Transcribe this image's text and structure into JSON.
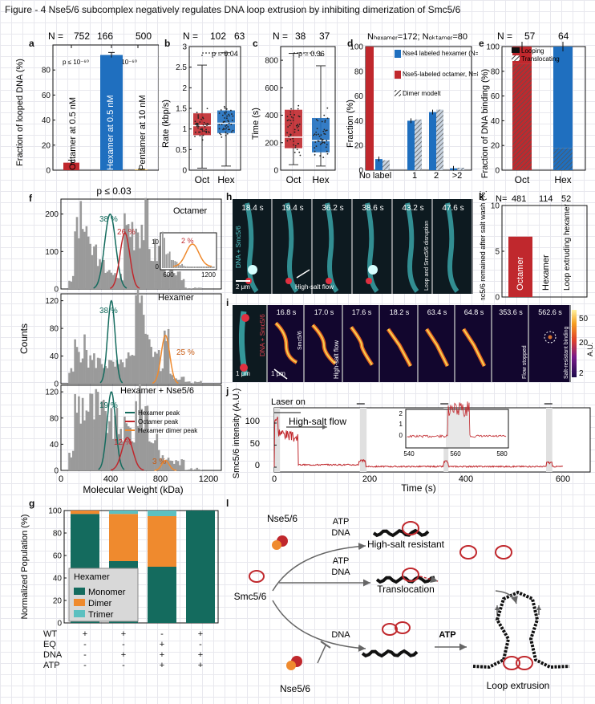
{
  "figure_title": "Figure - 4 Nse5/6 subcomplex negatively regulates DNA loop extrusion by inhibiting dimerization of Smc5/6",
  "panel_labels": {
    "a": "a",
    "b": "b",
    "c": "c",
    "d": "d",
    "e": "e",
    "f": "f",
    "g": "g",
    "h": "h",
    "i": "i",
    "j": "j",
    "k": "k",
    "l": "l"
  },
  "colors": {
    "red": "#c0282d",
    "blue": "#1f6fbf",
    "teal": "#146b5e",
    "orange": "#ef8a2e",
    "cyan": "#5cc0c0",
    "gray": "#9a9a9a"
  },
  "panel_a": {
    "n_prefix": "N =",
    "n_values": [
      "752",
      "166",
      "500"
    ],
    "ylabel": "Fraction of looped DNA (%)",
    "ticks": [
      "0",
      "20",
      "40",
      "60",
      "80"
    ],
    "pvals": [
      "p ≤ 10⁻⁶⁰",
      "p ≤ 10⁻⁶⁰"
    ],
    "bar_labels": [
      "Octamer at 0.5 nM",
      "Hexamer at 0.5 nM",
      "Pentamer at 10 nM"
    ],
    "chart_data": {
      "type": "bar",
      "categories": [
        "Octamer at 0.5 nM",
        "Hexamer at 0.5 nM",
        "Pentamer at 10 nM"
      ],
      "values": [
        6,
        92,
        0.5
      ],
      "errors": [
        2,
        2,
        0.3
      ],
      "ylim": [
        0,
        100
      ],
      "ylabel": "Fraction of looped DNA (%)"
    }
  },
  "panel_b": {
    "n_prefix": "N =",
    "n_values": [
      "102",
      "63"
    ],
    "ylabel": "Rate (kbp/s)",
    "ticks": [
      "0",
      "0.5",
      "1",
      "1.5",
      "2",
      "2.5",
      "3"
    ],
    "pval": "p = 0.04",
    "categories": [
      "Oct",
      "Hex"
    ],
    "chart_data": {
      "type": "box",
      "categories": [
        "Oct",
        "Hex"
      ],
      "median": [
        1.08,
        1.14
      ],
      "q1": [
        0.85,
        0.9
      ],
      "q3": [
        1.38,
        1.45
      ],
      "whisker_low": [
        0.05,
        0.1
      ],
      "whisker_high": [
        2.55,
        2.85
      ],
      "ylim": [
        0,
        3
      ]
    }
  },
  "panel_c": {
    "n_prefix": "N =",
    "n_values": [
      "38",
      "37"
    ],
    "ylabel": "Time (s)",
    "ticks": [
      "0",
      "200",
      "400",
      "600",
      "800"
    ],
    "pval": "p = 0.36",
    "categories": [
      "Oct",
      "Hex"
    ],
    "chart_data": {
      "type": "box",
      "categories": [
        "Oct",
        "Hex"
      ],
      "median": [
        240,
        215
      ],
      "q1": [
        160,
        130
      ],
      "q3": [
        440,
        380
      ],
      "whisker_low": [
        40,
        30
      ],
      "whisker_high": [
        850,
        760
      ],
      "ylim": [
        0,
        900
      ]
    }
  },
  "panel_d": {
    "title": "Nₕₑₓₐₘₑᵣ=172; Nₒₖₜₐₘₑᵣ=80",
    "title_plain": "N hexamer=172; N octamer=80",
    "ylabel": "Fraction (%)",
    "ticks": [
      "0",
      "20",
      "40",
      "60",
      "80",
      "100"
    ],
    "xticks": [
      "No label",
      "1",
      "2",
      ">2"
    ],
    "legend": [
      "Nse4 labeled hexamer (N=172)",
      "Nse5-labeled octamer, N=80",
      "Dimer modelt"
    ],
    "chart_data": {
      "type": "bar",
      "categories": [
        "No label",
        "1",
        "2",
        ">2"
      ],
      "series": [
        {
          "name": "Nse4 labeled hexamer (N=172)",
          "values": [
            9,
            40,
            47,
            1.5
          ]
        },
        {
          "name": "Nse5-labeled octamer, N=80",
          "values": [
            100,
            0,
            0,
            0
          ]
        },
        {
          "name": "Dimer modelt",
          "values": [
            8,
            41,
            49,
            2
          ]
        }
      ],
      "ylim": [
        0,
        100
      ]
    }
  },
  "panel_e": {
    "n_prefix": "N =",
    "n_values": [
      "57",
      "64"
    ],
    "ylabel": "Fraction of DNA binding (%)",
    "ticks": [
      "0",
      "20",
      "40",
      "60",
      "80",
      "100"
    ],
    "legend": [
      "Looping",
      "Translocating"
    ],
    "categories": [
      "Oct",
      "Hex"
    ],
    "chart_data": {
      "type": "stacked-bar",
      "categories": [
        "Oct",
        "Hex"
      ],
      "series": [
        {
          "name": "Looping",
          "values": [
            14,
            82
          ]
        },
        {
          "name": "Translocating",
          "values": [
            86,
            18
          ]
        }
      ],
      "ylim": [
        0,
        100
      ]
    }
  },
  "panel_f": {
    "pval": "p ≤ 0.03",
    "ylabel": "Counts",
    "xlabel": "Molecular Weight (kDa)",
    "xticks": [
      "0",
      "400",
      "800",
      "1200"
    ],
    "subpanels": [
      {
        "title": "Octamer",
        "ticks": [
          "0",
          "100",
          "200"
        ],
        "labels": [
          "38 %",
          "26 %"
        ],
        "inset_labels": [
          "2 %"
        ],
        "inset_ticks": [
          "600",
          "1200"
        ],
        "inset_yticks": [
          "0",
          "10"
        ]
      },
      {
        "title": "Hexamer",
        "ticks": [
          "0",
          "40",
          "80",
          "120"
        ],
        "labels": [
          "38 %",
          "25 %"
        ]
      },
      {
        "title": "Hexamer + Nse5/6",
        "ticks": [
          "0",
          "40",
          "80",
          "120"
        ],
        "labels": [
          "19 %",
          "12 %",
          "3 %"
        ]
      }
    ],
    "legend": [
      "Hexamer peak",
      "Octamer peak",
      "Hexamer dimer peak"
    ]
  },
  "panel_g": {
    "ylabel": "Normalized Population (%)",
    "ticks": [
      "0",
      "20",
      "40",
      "60",
      "80",
      "100"
    ],
    "legend_title": "Hexamer",
    "legend": [
      "Monomer",
      "Dimer",
      "Trimer"
    ],
    "row_labels": [
      "WT",
      "EQ",
      "DNA",
      "ATP"
    ],
    "row_values": [
      [
        "+",
        "+",
        "-",
        "+"
      ],
      [
        "-",
        "-",
        "+",
        "-"
      ],
      [
        "-",
        "+",
        "+",
        "+"
      ],
      [
        "-",
        "-",
        "+",
        "+"
      ]
    ],
    "chart_data": {
      "type": "stacked-bar",
      "categories": [
        "1",
        "2",
        "3",
        "4"
      ],
      "series": [
        {
          "name": "Monomer",
          "values": [
            97,
            55,
            50,
            100
          ]
        },
        {
          "name": "Dimer",
          "values": [
            3,
            42,
            45,
            0
          ]
        },
        {
          "name": "Trimer",
          "values": [
            0,
            3,
            5,
            0
          ]
        }
      ],
      "ylim": [
        0,
        100
      ]
    }
  },
  "panel_h": {
    "times": [
      "18.4 s",
      "19.4 s",
      "36.2 s",
      "38.6 s",
      "43.2 s",
      "47.6 s"
    ],
    "side_label": "DNA + Smc5/6",
    "scale": "2 μm",
    "flow": "High-salt flow",
    "disruption": "Loop and Smc5/6 disruption"
  },
  "panel_i": {
    "times": [
      "16.0 s",
      "16.8 s",
      "17.0 s",
      "17.6 s",
      "18.2 s",
      "63.4 s",
      "64.8 s",
      "353.6 s",
      "562.6 s"
    ],
    "side_label": "DNA + Smc5/6",
    "side_label2": "Smc5/6",
    "scale": "1 μm",
    "scale2": "1 μm",
    "flow": "High-salt flow",
    "flow_stopped": "Flow stopped",
    "resistant": "Salt-resistant binding",
    "colorbar_ticks": [
      "50",
      "20",
      "2"
    ],
    "colorbar_label": "A.U."
  },
  "panel_j": {
    "ylabel": "Smc5/6 intensity (A.U.)",
    "xlabel": "Time (s)",
    "ticks": [
      "0",
      "50",
      "100"
    ],
    "xticks": [
      "0",
      "200",
      "400",
      "600"
    ],
    "laser": "Laser on",
    "flow": "High-salt flow",
    "inset_xticks": [
      "540",
      "560",
      "580"
    ],
    "inset_yticks": [
      "0",
      "1",
      "2"
    ]
  },
  "panel_k": {
    "n_prefix": "N=",
    "n_values": [
      "481",
      "114",
      "52"
    ],
    "ylabel": "Smc5/6 remained after salt wash (%)",
    "ticks": [
      "0",
      "5",
      "10"
    ],
    "bar_labels": [
      "Octamer",
      "Hexamer",
      "Loop extruding hexamer"
    ],
    "chart_data": {
      "type": "bar",
      "categories": [
        "Octamer",
        "Hexamer",
        "Loop extruding hexamer"
      ],
      "values": [
        6.6,
        0,
        0
      ],
      "ylim": [
        0,
        10
      ]
    }
  },
  "panel_l": {
    "labels": [
      "Nse5/6",
      "ATP",
      "DNA",
      "High-salt resistant",
      "ATP",
      "DNA",
      "Translocation",
      "Smc5/6",
      "DNA",
      "ATP",
      "Loop extrusion",
      "Nse5/6"
    ]
  }
}
